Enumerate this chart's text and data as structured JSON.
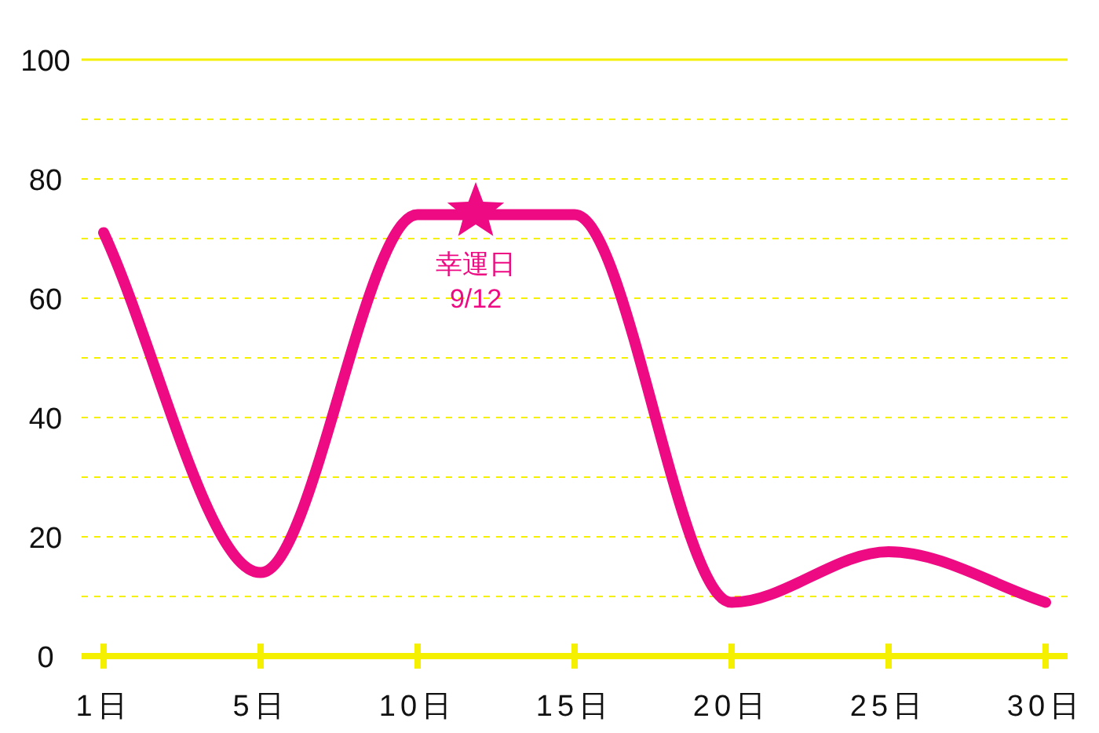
{
  "chart_data": {
    "type": "line",
    "categories": [
      "1日",
      "5日",
      "10日",
      "15日",
      "20日",
      "25日",
      "30日"
    ],
    "series": [
      {
        "color": "#ee0a82",
        "values": [
          71,
          14,
          74,
          74,
          9,
          17.5,
          9
        ]
      }
    ],
    "ylim": [
      0,
      100
    ],
    "yticks": [
      0,
      {
        "value": 10,
        "label": null
      },
      20,
      {
        "value": 30,
        "label": null
      },
      40,
      {
        "value": 50,
        "label": null
      },
      60,
      {
        "value": 70,
        "label": null
      },
      80,
      {
        "value": 90,
        "label": null
      },
      100
    ],
    "grid": "y",
    "marker": "none",
    "line_style": "solid",
    "annotations": [
      {
        "text": "幸運日 9/12",
        "y": 75
      }
    ]
  }
}
